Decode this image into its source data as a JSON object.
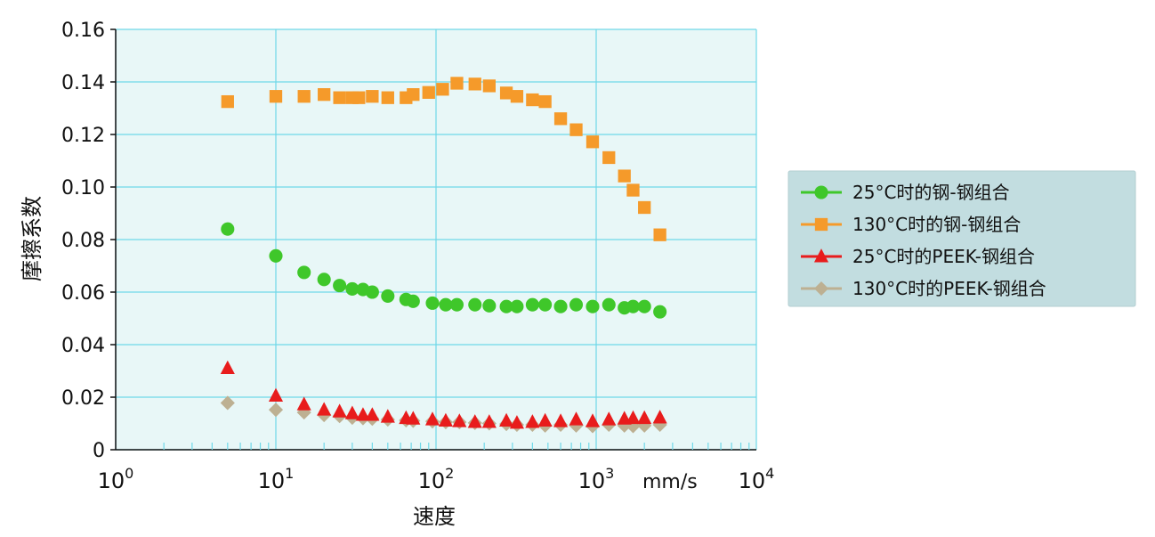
{
  "chart_data": {
    "type": "scatter",
    "xscale": "log",
    "xlim": [
      1,
      10000
    ],
    "ylim": [
      0,
      0.16
    ],
    "xlabel": "速度",
    "ylabel": "摩擦系数",
    "x_unit_label": "mm/s",
    "xticks": [
      {
        "value": 1,
        "base": "10",
        "exp": "0"
      },
      {
        "value": 10,
        "base": "10",
        "exp": "1"
      },
      {
        "value": 100,
        "base": "10",
        "exp": "2"
      },
      {
        "value": 1000,
        "base": "10",
        "exp": "3"
      },
      {
        "value": 10000,
        "base": "10",
        "exp": "4"
      }
    ],
    "yticks": [
      {
        "value": 0,
        "label": "0"
      },
      {
        "value": 0.02,
        "label": "0.02"
      },
      {
        "value": 0.04,
        "label": "0.04"
      },
      {
        "value": 0.06,
        "label": "0.06"
      },
      {
        "value": 0.08,
        "label": "0.08"
      },
      {
        "value": 0.1,
        "label": "0.10"
      },
      {
        "value": 0.12,
        "label": "0.12"
      },
      {
        "value": 0.14,
        "label": "0.14"
      },
      {
        "value": 0.16,
        "label": "0.16"
      }
    ],
    "grid": true,
    "legend_position": "right",
    "colors": {
      "plot_background": "#e8f7f7",
      "grid": "#6fd8e8",
      "legend_background": "#c2dde0"
    },
    "series": [
      {
        "name": "25°C时的钢-钢组合",
        "marker": "circle",
        "color": "#3fc72a",
        "x": [
          5,
          10,
          15,
          20,
          25,
          30,
          35,
          40,
          50,
          65,
          72,
          95,
          115,
          135,
          175,
          215,
          275,
          320,
          400,
          480,
          600,
          750,
          950,
          1200,
          1500,
          1700,
          2000,
          2500
        ],
        "y": [
          0.084,
          0.0738,
          0.0675,
          0.0648,
          0.0625,
          0.0612,
          0.061,
          0.06,
          0.0585,
          0.0572,
          0.0565,
          0.0558,
          0.0552,
          0.0552,
          0.0552,
          0.0548,
          0.0545,
          0.0545,
          0.0552,
          0.0552,
          0.0545,
          0.0552,
          0.0545,
          0.0552,
          0.054,
          0.0545,
          0.0545,
          0.0525
        ]
      },
      {
        "name": "130°C时的钢-钢组合",
        "marker": "square",
        "color": "#f59a2a",
        "x": [
          5,
          10,
          15,
          20,
          25,
          30,
          33,
          40,
          50,
          65,
          72,
          90,
          110,
          135,
          175,
          215,
          275,
          320,
          400,
          480,
          600,
          750,
          950,
          1200,
          1500,
          1700,
          2000,
          2500
        ],
        "y": [
          0.1325,
          0.1345,
          0.1345,
          0.1352,
          0.134,
          0.134,
          0.134,
          0.1345,
          0.134,
          0.134,
          0.1352,
          0.136,
          0.1372,
          0.1395,
          0.1392,
          0.1385,
          0.1358,
          0.1345,
          0.1332,
          0.1325,
          0.126,
          0.1218,
          0.1172,
          0.1112,
          0.1042,
          0.0988,
          0.0922,
          0.0818
        ]
      },
      {
        "name": "25°C时的PEEK-钢组合",
        "marker": "triangle",
        "color": "#e81c1c",
        "x": [
          5,
          10,
          15,
          20,
          25,
          30,
          35,
          40,
          50,
          65,
          72,
          95,
          115,
          140,
          175,
          215,
          275,
          320,
          400,
          480,
          600,
          750,
          950,
          1200,
          1500,
          1700,
          2000,
          2500
        ],
        "y": [
          0.031,
          0.0205,
          0.0172,
          0.0152,
          0.0145,
          0.0138,
          0.0132,
          0.0132,
          0.0125,
          0.012,
          0.0118,
          0.0115,
          0.011,
          0.0108,
          0.0105,
          0.0105,
          0.011,
          0.0102,
          0.0105,
          0.011,
          0.0108,
          0.0115,
          0.0108,
          0.0115,
          0.0118,
          0.012,
          0.012,
          0.0122
        ]
      },
      {
        "name": "130°C时的PEEK-钢组合",
        "marker": "diamond",
        "color": "#bdb092",
        "x": [
          5,
          10,
          15,
          20,
          25,
          30,
          35,
          40,
          50,
          65,
          72,
          95,
          115,
          140,
          175,
          215,
          275,
          320,
          400,
          480,
          600,
          750,
          950,
          1200,
          1500,
          1700,
          2000,
          2500
        ],
        "y": [
          0.0178,
          0.0152,
          0.0142,
          0.0132,
          0.0128,
          0.0122,
          0.012,
          0.0118,
          0.0115,
          0.0112,
          0.011,
          0.0108,
          0.0105,
          0.0105,
          0.0102,
          0.01,
          0.0098,
          0.0095,
          0.0095,
          0.0092,
          0.0095,
          0.0092,
          0.009,
          0.0095,
          0.0092,
          0.009,
          0.0092,
          0.0095
        ]
      }
    ]
  }
}
